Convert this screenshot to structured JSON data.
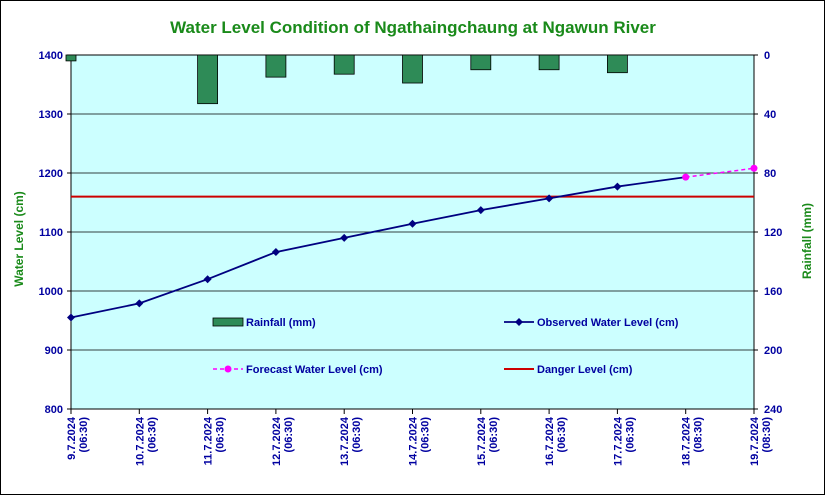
{
  "chart_data": {
    "type": "line",
    "title": "Water Level Condition of  Ngathaingchaung at Ngawun River",
    "ylabel": "Water Level (cm)",
    "y2label": "Rainfall (mm)",
    "ylim": [
      800,
      1400
    ],
    "y_ticks": [
      800,
      900,
      1000,
      1100,
      1200,
      1300,
      1400
    ],
    "y2lim": [
      0,
      240
    ],
    "y2_reversed": true,
    "y2_ticks": [
      0,
      40,
      80,
      120,
      160,
      200,
      240
    ],
    "grid": true,
    "categories": [
      [
        "9.7.2024",
        "(06:30)"
      ],
      [
        "10.7.2024",
        "(06:30)"
      ],
      [
        "11.7.2024",
        "(06:30)"
      ],
      [
        "12.7.2024",
        "(06:30)"
      ],
      [
        "13.7.2024",
        "(06:30)"
      ],
      [
        "14.7.2024",
        "(06:30)"
      ],
      [
        "15.7.2024",
        "(06:30)"
      ],
      [
        "16.7.2024",
        "(06:30)"
      ],
      [
        "17.7.2024",
        "(06:30)"
      ],
      [
        "18.7.2024",
        "(08:30)"
      ],
      [
        "19.7.2024",
        "(08:30)"
      ]
    ],
    "series": [
      {
        "name": "Rainfall (mm)",
        "type": "bar",
        "axis": "y2",
        "color": "#2e8b57",
        "values": [
          4,
          0,
          33,
          15,
          13,
          19,
          10,
          10,
          12,
          null,
          null
        ]
      },
      {
        "name": "Observed Water Level (cm)",
        "type": "line",
        "axis": "y",
        "color": "#000080",
        "marker": "diamond",
        "values": [
          955,
          979,
          1020,
          1066,
          1090,
          1114,
          1137,
          1157,
          1177,
          1193,
          null
        ]
      },
      {
        "name": "Forecast Water Level (cm)",
        "type": "line",
        "axis": "y",
        "color": "#ff00ff",
        "dash": true,
        "marker": "circle",
        "values": [
          null,
          null,
          null,
          null,
          null,
          null,
          null,
          null,
          null,
          1193,
          1208
        ]
      },
      {
        "name": "Danger Level (cm)",
        "type": "hline",
        "axis": "y",
        "color": "#cc0000",
        "value": 1160
      }
    ],
    "legend": {
      "placement": "inside-bottom",
      "entries": [
        "Rainfall (mm)",
        "Observed Water Level (cm)",
        "Forecast Water Level (cm)",
        "Danger Level (cm)"
      ]
    },
    "plot_background": "#ccffff"
  }
}
